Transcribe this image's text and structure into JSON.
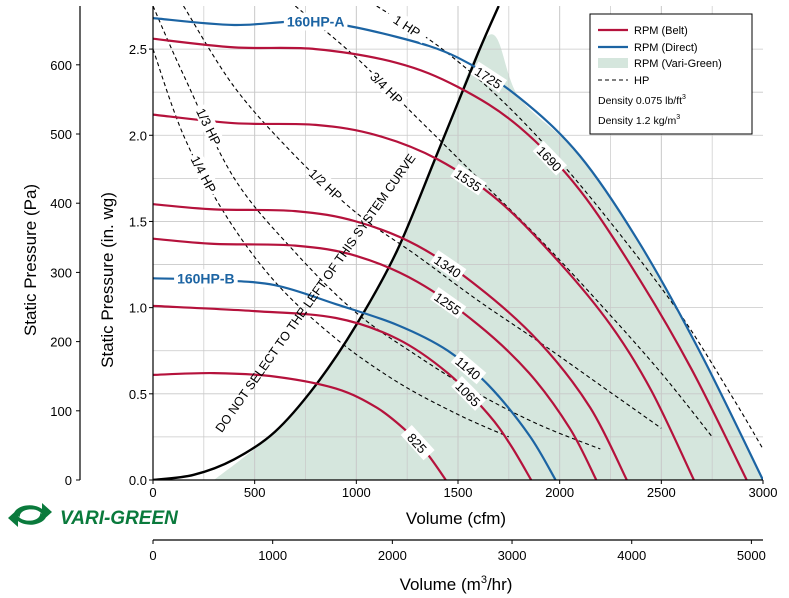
{
  "brand": {
    "logo_text": "VARI-GREEN",
    "logo_color": "#0a7a3c"
  },
  "colors": {
    "belt": "#b5123c",
    "direct": "#1c64a3",
    "vari_green_fill": "#d5e6dd",
    "hp": "#000000",
    "grid": "#c8c8c8",
    "system_curve": "#000000"
  },
  "chart_data": {
    "type": "line",
    "xlabel": "Volume (cfm)",
    "xlabel_metric_prefix": "Volume (m",
    "xlabel_metric_sup": "3",
    "xlabel_metric_suffix": "/hr)",
    "ylabel": "Static Pressure (in. wg)",
    "ylabel_pa": "Static Pressure (Pa)",
    "xlim": [
      0,
      3000
    ],
    "ylim": [
      0,
      2.75
    ],
    "x_ticks": [
      0,
      500,
      1000,
      1500,
      2000,
      2500,
      3000
    ],
    "y_ticks": [
      0.0,
      0.5,
      1.0,
      1.5,
      2.0,
      2.5
    ],
    "y_tick_labels": [
      "0.0",
      "0.5",
      "1.0",
      "1.5",
      "2.0",
      "2.5"
    ],
    "pa_ticks": [
      0,
      100,
      200,
      300,
      400,
      500,
      600
    ],
    "m3hr_ticks": [
      0,
      1000,
      2000,
      3000,
      4000,
      5000
    ],
    "grid": true,
    "legend": {
      "position": "top-right",
      "entries": [
        "RPM (Belt)",
        "RPM (Direct)",
        "RPM (Vari-Green)",
        "HP"
      ],
      "density_prefix": "Density 0.075 lb/ft",
      "density_sup": "3",
      "density_prefix_metric": "Density 1.2 kg/m",
      "density_sup_metric": "3"
    },
    "series": [
      {
        "name": "825",
        "kind": "belt",
        "x": [
          0,
          300,
          600,
          900,
          1100,
          1250,
          1350,
          1440
        ],
        "y": [
          0.61,
          0.62,
          0.6,
          0.53,
          0.42,
          0.28,
          0.15,
          0.0
        ]
      },
      {
        "name": "1065",
        "kind": "belt",
        "x": [
          0,
          500,
          900,
          1200,
          1450,
          1650,
          1760,
          1860
        ],
        "y": [
          1.01,
          0.98,
          0.94,
          0.82,
          0.62,
          0.38,
          0.2,
          0.0
        ]
      },
      {
        "name": "1140",
        "kind": "direct",
        "x": [
          0,
          300,
          600,
          900,
          1200,
          1450,
          1650,
          1850,
          1980
        ],
        "y": [
          1.17,
          1.16,
          1.13,
          1.02,
          0.9,
          0.75,
          0.55,
          0.26,
          0.0
        ]
      },
      {
        "name": "1255",
        "kind": "belt",
        "x": [
          0,
          300,
          700,
          1000,
          1300,
          1600,
          1850,
          2050,
          2180
        ],
        "y": [
          1.4,
          1.37,
          1.36,
          1.3,
          1.15,
          0.9,
          0.62,
          0.3,
          0.0
        ]
      },
      {
        "name": "1340",
        "kind": "belt",
        "x": [
          0,
          300,
          700,
          1000,
          1300,
          1600,
          1900,
          2150,
          2330
        ],
        "y": [
          1.6,
          1.57,
          1.56,
          1.5,
          1.36,
          1.12,
          0.8,
          0.42,
          0.0
        ]
      },
      {
        "name": "1535",
        "kind": "belt",
        "x": [
          0,
          400,
          800,
          1100,
          1400,
          1700,
          2000,
          2250,
          2450,
          2660
        ],
        "y": [
          2.12,
          2.07,
          2.06,
          2.0,
          1.86,
          1.62,
          1.26,
          0.9,
          0.52,
          0.0
        ]
      },
      {
        "name": "1690",
        "kind": "belt",
        "x": [
          0,
          400,
          800,
          1200,
          1500,
          1800,
          2100,
          2400,
          2650,
          2920
        ],
        "y": [
          2.56,
          2.51,
          2.5,
          2.42,
          2.28,
          2.05,
          1.68,
          1.15,
          0.64,
          0.0
        ]
      },
      {
        "name": "1725",
        "kind": "direct",
        "x": [
          0,
          400,
          800,
          1200,
          1500,
          1800,
          2100,
          2400,
          2700,
          3000
        ],
        "y": [
          2.68,
          2.64,
          2.66,
          2.57,
          2.45,
          2.22,
          1.88,
          1.36,
          0.72,
          0.0
        ]
      }
    ],
    "direct_labels": [
      "160HP-A",
      "160HP-B"
    ],
    "hp_curves": [
      {
        "name": "1/4 HP",
        "x": [
          0,
          150,
          350,
          600,
          900,
          1200,
          1500,
          1750
        ],
        "y": [
          2.5,
          2.0,
          1.55,
          1.15,
          0.82,
          0.57,
          0.38,
          0.25
        ]
      },
      {
        "name": "1/3 HP",
        "x": [
          0,
          150,
          400,
          700,
          1000,
          1300,
          1600,
          1900,
          2200
        ],
        "y": [
          2.75,
          2.35,
          1.75,
          1.32,
          0.97,
          0.72,
          0.5,
          0.32,
          0.18
        ]
      },
      {
        "name": "1/2 HP",
        "x": [
          150,
          400,
          700,
          1000,
          1300,
          1600,
          1900,
          2200,
          2500
        ],
        "y": [
          2.75,
          2.28,
          1.88,
          1.55,
          1.3,
          1.04,
          0.8,
          0.55,
          0.3
        ]
      },
      {
        "name": "3/4 HP",
        "x": [
          700,
          1000,
          1300,
          1600,
          1900,
          2200,
          2500,
          2750
        ],
        "y": [
          2.75,
          2.45,
          2.1,
          1.75,
          1.4,
          1.02,
          0.62,
          0.25
        ]
      },
      {
        "name": "1 HP",
        "x": [
          1100,
          1400,
          1700,
          2000,
          2300,
          2600,
          2850,
          3000
        ],
        "y": [
          2.75,
          2.52,
          2.22,
          1.85,
          1.42,
          0.95,
          0.48,
          0.18
        ]
      }
    ],
    "system_curve": {
      "label": "DO NOT SELECT TO THE LEFT OF THIS SYSTEM CURVE",
      "x": [
        0,
        200,
        400,
        600,
        800,
        1000,
        1200,
        1400,
        1600,
        1700
      ],
      "y": [
        0.0,
        0.03,
        0.12,
        0.28,
        0.55,
        0.9,
        1.33,
        1.9,
        2.48,
        2.75
      ]
    },
    "vari_green_region": {
      "x": [
        300,
        600,
        800,
        1000,
        1200,
        1400,
        1650,
        1800,
        2100,
        2400,
        2700,
        3000
      ],
      "y": [
        0.0,
        0.28,
        0.55,
        0.9,
        1.33,
        1.9,
        2.58,
        2.22,
        1.88,
        1.36,
        0.72,
        0.0
      ]
    }
  }
}
